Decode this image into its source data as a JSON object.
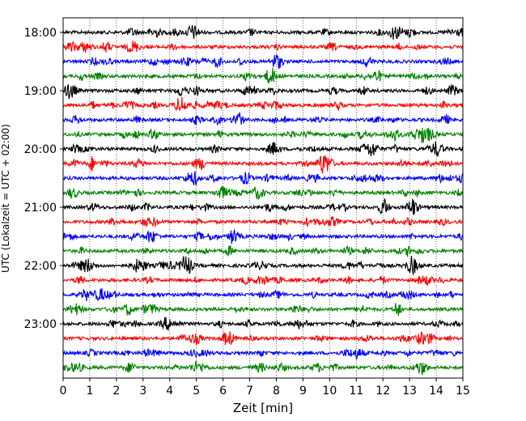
{
  "chart_data": {
    "type": "line",
    "title": "",
    "xlabel": "Zeit  [min]",
    "ylabel": "UTC (Lokalzeit = UTC + 02:00)",
    "xlim": [
      0,
      15
    ],
    "x_ticks": [
      0,
      1,
      2,
      3,
      4,
      5,
      6,
      7,
      8,
      9,
      10,
      11,
      12,
      13,
      14,
      15
    ],
    "y_tick_labels": [
      "18:00",
      "19:00",
      "20:00",
      "21:00",
      "22:00",
      "23:00"
    ],
    "trace_start_times": [
      "18:00",
      "18:15",
      "18:30",
      "18:45",
      "19:00",
      "19:15",
      "19:30",
      "19:45",
      "20:00",
      "20:15",
      "20:30",
      "20:45",
      "21:00",
      "21:15",
      "21:30",
      "21:45",
      "22:00",
      "22:15",
      "22:30",
      "22:45",
      "23:00",
      "23:15",
      "23:30",
      "23:45"
    ],
    "trace_colors": [
      "#000000",
      "#ff0000",
      "#0000ff",
      "#008000"
    ],
    "minutes_per_trace": 15,
    "grid_x": true,
    "legend": "none",
    "events": [
      {
        "trace": 0,
        "minute": 4.9,
        "amp": 0.55
      },
      {
        "trace": 0,
        "minute": 12.6,
        "amp": 0.5
      },
      {
        "trace": 2,
        "minute": 8.0,
        "amp": 0.5
      },
      {
        "trace": 3,
        "minute": 7.8,
        "amp": 0.6
      },
      {
        "trace": 4,
        "minute": 0.3,
        "amp": 0.6
      },
      {
        "trace": 5,
        "minute": 4.4,
        "amp": 0.6
      },
      {
        "trace": 7,
        "minute": 12.4,
        "amp": 0.6
      },
      {
        "trace": 7,
        "minute": 13.6,
        "amp": 0.6
      },
      {
        "trace": 8,
        "minute": 7.9,
        "amp": 0.6
      },
      {
        "trace": 8,
        "minute": 11.6,
        "amp": 0.7
      },
      {
        "trace": 9,
        "minute": 9.9,
        "amp": 0.7
      },
      {
        "trace": 10,
        "minute": 4.8,
        "amp": 0.6
      },
      {
        "trace": 11,
        "minute": 7.3,
        "amp": 0.6
      },
      {
        "trace": 12,
        "minute": 13.1,
        "amp": 0.6
      },
      {
        "trace": 14,
        "minute": 3.3,
        "amp": 0.6
      },
      {
        "trace": 16,
        "minute": 4.6,
        "amp": 0.9
      },
      {
        "trace": 16,
        "minute": 2.8,
        "amp": 0.6
      },
      {
        "trace": 16,
        "minute": 13.1,
        "amp": 0.6
      },
      {
        "trace": 18,
        "minute": 1.4,
        "amp": 0.6
      },
      {
        "trace": 19,
        "minute": 3.3,
        "amp": 0.5
      },
      {
        "trace": 20,
        "minute": 3.9,
        "amp": 0.6
      },
      {
        "trace": 21,
        "minute": 6.2,
        "amp": 0.5
      },
      {
        "trace": 23,
        "minute": 5.0,
        "amp": 0.5
      },
      {
        "trace": 23,
        "minute": 13.4,
        "amp": 0.6
      }
    ]
  }
}
